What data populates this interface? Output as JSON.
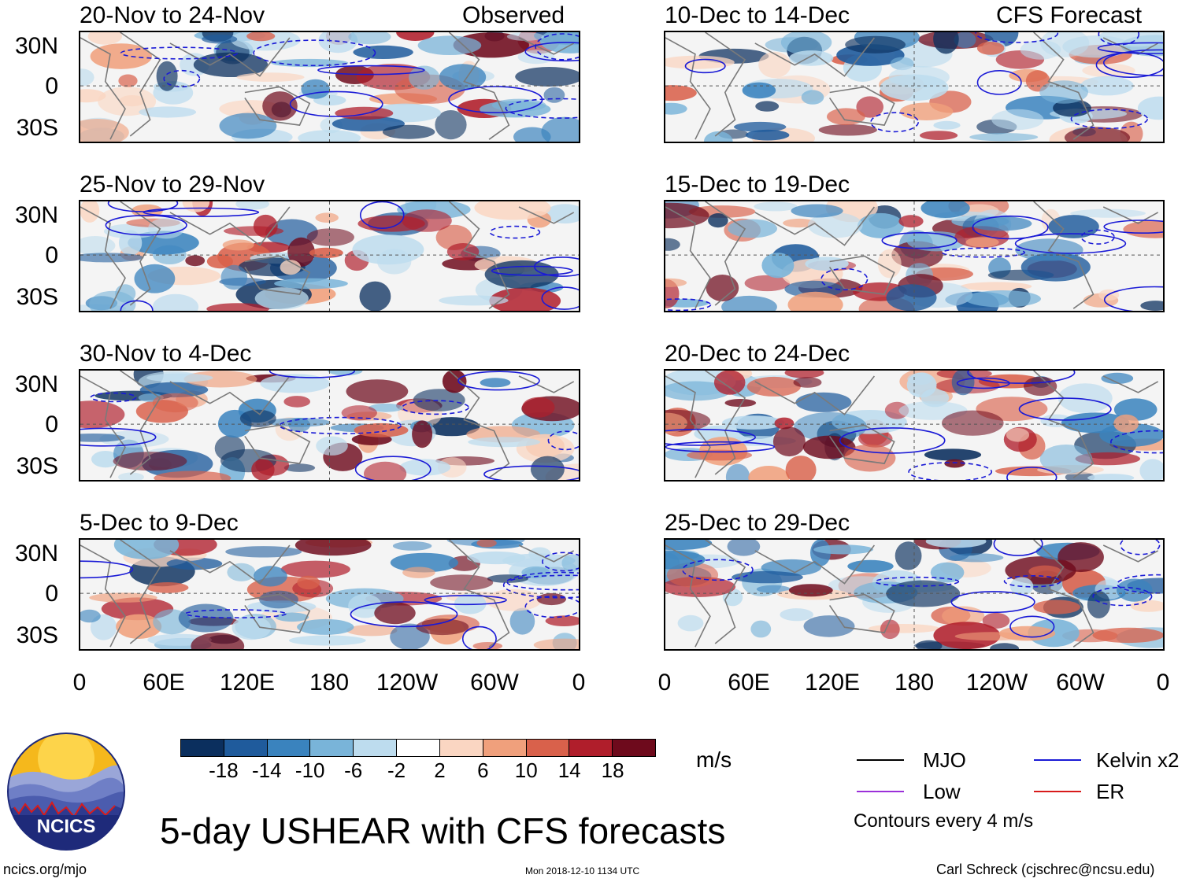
{
  "left_column": {
    "mode_label": "Observed",
    "panels": [
      {
        "title": "20-Nov to 24-Nov"
      },
      {
        "title": "25-Nov to 29-Nov"
      },
      {
        "title": "30-Nov to 4-Dec"
      },
      {
        "title": "5-Dec to 9-Dec"
      }
    ]
  },
  "right_column": {
    "mode_label": "CFS Forecast",
    "panels": [
      {
        "title": "10-Dec to 14-Dec"
      },
      {
        "title": "15-Dec to 19-Dec"
      },
      {
        "title": "20-Dec to 24-Dec"
      },
      {
        "title": "25-Dec to 29-Dec"
      }
    ]
  },
  "axes": {
    "lat_labels": [
      "30N",
      "0",
      "30S"
    ],
    "lon_labels": [
      "0",
      "60E",
      "120E",
      "180",
      "120W",
      "60W",
      "0"
    ]
  },
  "colorbar": {
    "labels": [
      "-18",
      "-14",
      "-10",
      "-6",
      "-2",
      "2",
      "6",
      "10",
      "14",
      "18"
    ],
    "colors": [
      "#0b2f5e",
      "#1f5b9c",
      "#3a83be",
      "#79b4d9",
      "#bddcee",
      "#ffffff",
      "#fad6c2",
      "#f0a07c",
      "#d9614b",
      "#b01e2b",
      "#6e0a1c"
    ],
    "unit": "m/s"
  },
  "legend": {
    "items": [
      {
        "label": "MJO",
        "color": "#000000"
      },
      {
        "label": "Kelvin x2",
        "color": "#1a1ad6"
      },
      {
        "label": "Low",
        "color": "#9b30d9"
      },
      {
        "label": "ER",
        "color": "#d81b1b"
      }
    ],
    "note": "Contours every 4 m/s"
  },
  "title": "5-day USHEAR with CFS forecasts",
  "logo": {
    "text": "NCICS"
  },
  "footer": {
    "url": "ncics.org/mjo",
    "timestamp": "Mon 2018-12-10 1134 UTC",
    "credit": "Carl Schreck (cjschrec@ncsu.edu)"
  }
}
